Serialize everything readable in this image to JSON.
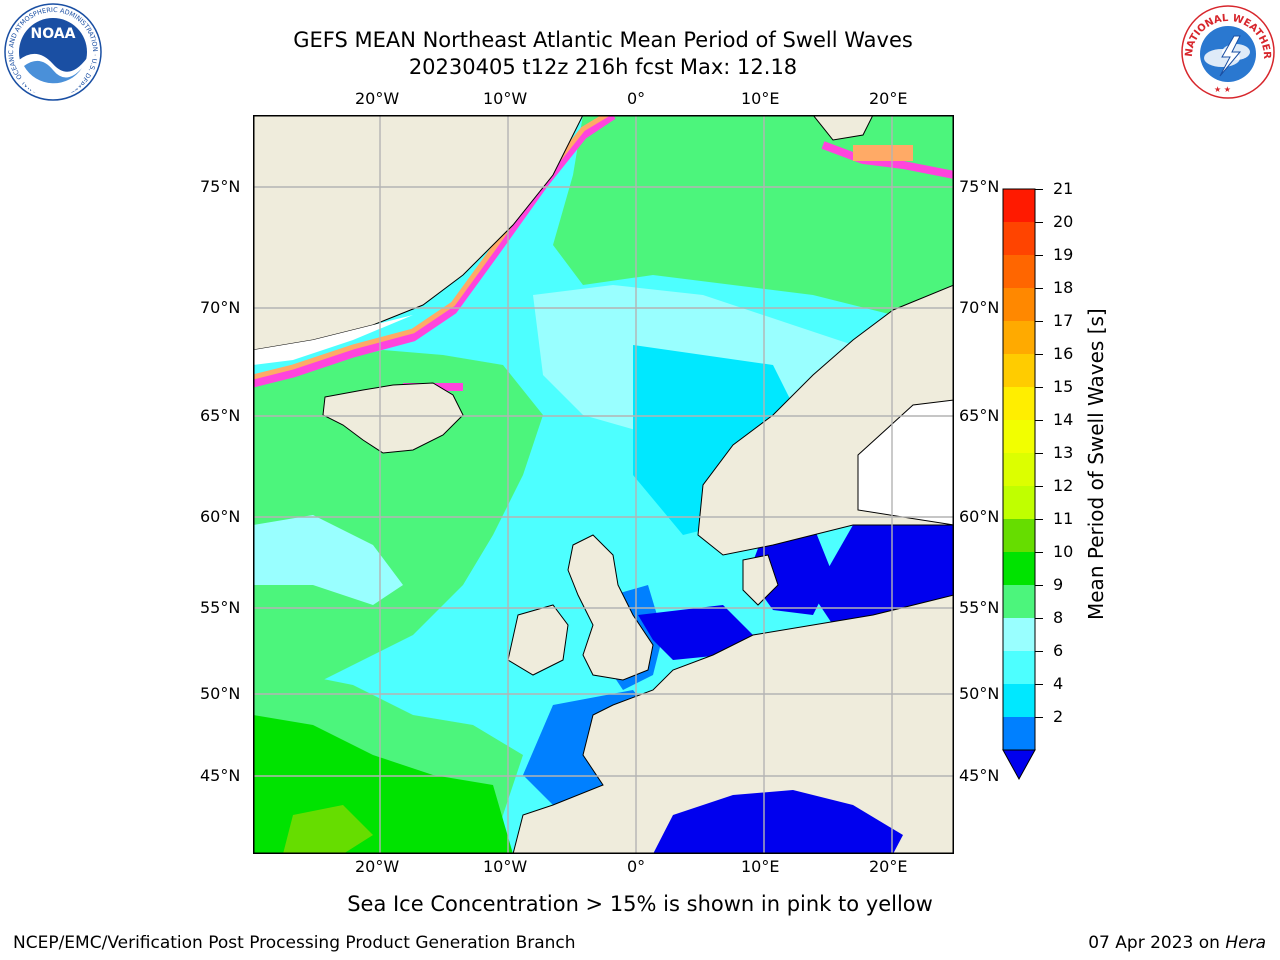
{
  "title_line1": "GEFS MEAN Northeast Atlantic Mean Period of Swell Waves",
  "title_line2": "20230405 t12z 216h fcst   Max: 12.18",
  "logos": {
    "left": {
      "text": "NOAA",
      "ring_text": "NATIONAL OCEANIC AND ATMOSPHERIC ADMINISTRATION · U.S. DEPARTMENT OF COMMERCE",
      "color": "#1a4fa3"
    },
    "right": {
      "ring_text": "NATIONAL WEATHER SERVICE",
      "color": "#d7262c"
    }
  },
  "map": {
    "lon_ticks": [
      "20°W",
      "10°W",
      "0°",
      "10°E",
      "20°E"
    ],
    "lat_ticks": [
      "75°N",
      "70°N",
      "65°N",
      "60°N",
      "55°N",
      "50°N",
      "45°N"
    ],
    "land_color": "#efecdc",
    "grid_color": "#b4b4b4",
    "colors": {
      "lt2": "#0000ee",
      "c2_4": "#0080ff",
      "c4_6": "#00e8ff",
      "c6_8": "#4dffff",
      "c8_9": "#99ffff",
      "c9_10": "#4cf57c",
      "c10_11": "#00e300",
      "c11_12": "#66dd00",
      "ice_pink": "#ff44dd",
      "ice_orange": "#ffaa66",
      "ice_yellow": "#ffee44"
    }
  },
  "colorbar": {
    "label": "Mean Period of Swell Waves [s]",
    "ticks": [
      "21",
      "20",
      "19",
      "18",
      "17",
      "16",
      "15",
      "14",
      "13",
      "12",
      "11",
      "10",
      "9",
      "8",
      "6",
      "4",
      "2"
    ],
    "colors": [
      "#ff1a00",
      "#ff4400",
      "#ff6600",
      "#ff8800",
      "#ffaa00",
      "#ffcc00",
      "#ffee00",
      "#f2ff00",
      "#dcff00",
      "#c0ff00",
      "#66dd00",
      "#00e300",
      "#4cf57c",
      "#99ffff",
      "#4dffff",
      "#00e8ff",
      "#0080ff"
    ],
    "under_color": "#0000ee"
  },
  "note": "Sea Ice Concentration > 15% is shown in pink to yellow",
  "footer": {
    "left": "NCEP/EMC/Verification Post Processing Product Generation Branch",
    "right_prefix": "07 Apr 2023 on ",
    "right_host": "Hera"
  }
}
